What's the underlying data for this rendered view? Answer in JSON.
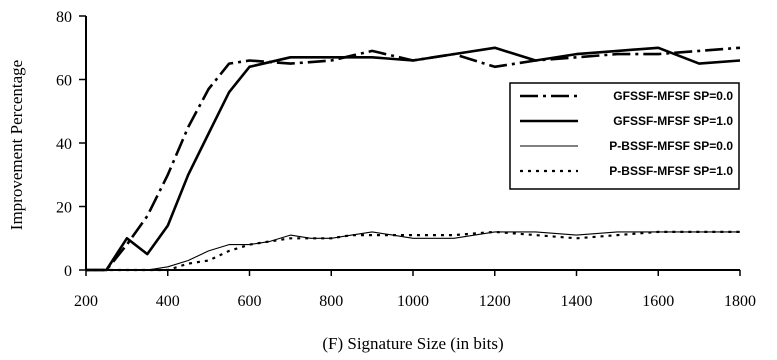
{
  "chart_data": {
    "type": "line",
    "title": "",
    "xlabel": "(F) Signature Size (in bits)",
    "ylabel": "Improvement Percentage",
    "xlim": [
      200,
      1800
    ],
    "ylim": [
      0,
      80
    ],
    "xticks": [
      200,
      400,
      600,
      800,
      1000,
      1200,
      1400,
      1600,
      1800
    ],
    "yticks": [
      0,
      20,
      40,
      60,
      80
    ],
    "grid": false,
    "legend_position": "right",
    "series": [
      {
        "name": "GFSSF-MFSF SP=0.0",
        "style": "dashdot",
        "width": 2.6,
        "x": [
          200,
          250,
          300,
          350,
          400,
          450,
          500,
          550,
          600,
          700,
          800,
          900,
          1000,
          1100,
          1200,
          1300,
          1400,
          1500,
          1600,
          1700,
          1800
        ],
        "y": [
          0,
          0,
          8,
          17,
          30,
          45,
          57,
          65,
          66,
          65,
          66,
          69,
          66,
          68,
          64,
          66,
          67,
          68,
          68,
          69,
          70
        ]
      },
      {
        "name": "GFSSF-MFSF SP=1.0",
        "style": "solid",
        "width": 2.6,
        "x": [
          200,
          250,
          300,
          350,
          400,
          450,
          500,
          550,
          600,
          700,
          800,
          900,
          1000,
          1100,
          1200,
          1300,
          1400,
          1500,
          1600,
          1700,
          1800
        ],
        "y": [
          0,
          0,
          10,
          5,
          14,
          30,
          43,
          56,
          64,
          67,
          67,
          67,
          66,
          68,
          70,
          66,
          68,
          69,
          70,
          65,
          66
        ]
      },
      {
        "name": "P-BSSF-MFSF SP=0.0",
        "style": "solid",
        "width": 1.1,
        "x": [
          200,
          350,
          400,
          450,
          500,
          550,
          600,
          650,
          700,
          750,
          800,
          850,
          900,
          950,
          1000,
          1100,
          1200,
          1300,
          1400,
          1500,
          1600,
          1700,
          1800
        ],
        "y": [
          0,
          0,
          1,
          3,
          6,
          8,
          8,
          9,
          11,
          10,
          10,
          11,
          12,
          11,
          10,
          10,
          12,
          12,
          11,
          12,
          12,
          12,
          12
        ]
      },
      {
        "name": "P-BSSF-MFSF SP=1.0",
        "style": "dotted",
        "width": 2.2,
        "x": [
          200,
          350,
          400,
          450,
          500,
          550,
          600,
          650,
          700,
          750,
          800,
          850,
          900,
          950,
          1000,
          1100,
          1200,
          1300,
          1400,
          1500,
          1600,
          1700,
          1800
        ],
        "y": [
          0,
          0,
          0,
          2,
          3,
          6,
          8,
          9,
          10,
          10,
          10,
          11,
          11,
          11,
          11,
          11,
          12,
          11,
          10,
          11,
          12,
          12,
          12
        ]
      }
    ]
  }
}
